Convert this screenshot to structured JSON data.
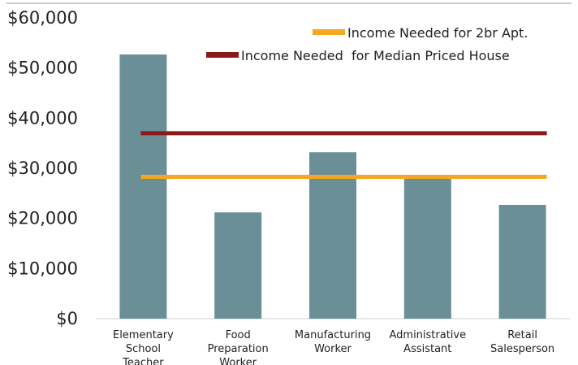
{
  "chart_data": {
    "type": "bar",
    "categories": [
      [
        "Elementary",
        "School",
        "Teacher"
      ],
      [
        "Food",
        "Preparation",
        "Worker"
      ],
      [
        "Manufacturing",
        "Worker"
      ],
      [
        "Administrative",
        "Assistant"
      ],
      [
        "Retail",
        "Salesperson"
      ]
    ],
    "values": [
      52700,
      21200,
      33200,
      28000,
      22700
    ],
    "bar_color": "#6b8f96",
    "ylim": [
      0,
      60000
    ],
    "yticks": [
      0,
      10000,
      20000,
      30000,
      40000,
      50000,
      60000
    ],
    "ytick_labels": [
      "$0",
      "$10,000",
      "$20,000",
      "$30,000",
      "$40,000",
      "$50,000",
      "$60,000"
    ],
    "grid": false,
    "legend_position": "top-right",
    "reference_lines": [
      {
        "name": "Income Needed for 2br Apt.",
        "value": 28300,
        "color": "#f5a623"
      },
      {
        "name": "Income Needed  for Median Priced House",
        "value": 37000,
        "color": "#8b1a1a"
      }
    ]
  }
}
